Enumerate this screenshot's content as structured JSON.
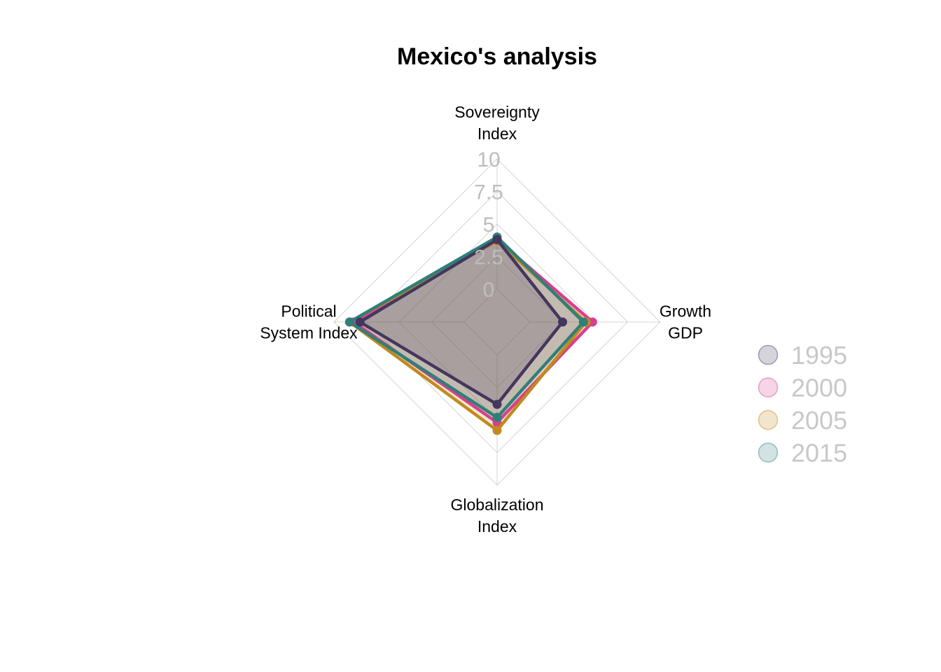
{
  "chart_data": {
    "type": "radar",
    "title": "Mexico's analysis",
    "axes": [
      [
        "Sovereignty",
        "Index"
      ],
      [
        "Growth",
        "GDP"
      ],
      [
        "Globalization",
        "Index"
      ],
      [
        "Political",
        "System Index"
      ]
    ],
    "ticks": [
      "0",
      "2.5",
      "5",
      "7.5",
      "10"
    ],
    "range": [
      0,
      10
    ],
    "grid": true,
    "legend_position": "right",
    "series": [
      {
        "name": "2000",
        "color": "#d6408c",
        "values": [
          3.8,
          4.8,
          5.2,
          8.5
        ]
      },
      {
        "name": "2005",
        "color": "#c08a1e",
        "values": [
          3.7,
          4.3,
          5.8,
          8.8
        ]
      },
      {
        "name": "2015",
        "color": "#2e8079",
        "values": [
          4.0,
          4.1,
          4.8,
          8.8
        ]
      },
      {
        "name": "1995",
        "color": "#43375e",
        "values": [
          3.8,
          2.5,
          3.8,
          8.0
        ]
      }
    ],
    "legend": [
      {
        "name": "1995",
        "color": "#43375e"
      },
      {
        "name": "2000",
        "color": "#d6408c"
      },
      {
        "name": "2005",
        "color": "#c08a1e"
      },
      {
        "name": "2015",
        "color": "#2e8079"
      }
    ]
  }
}
